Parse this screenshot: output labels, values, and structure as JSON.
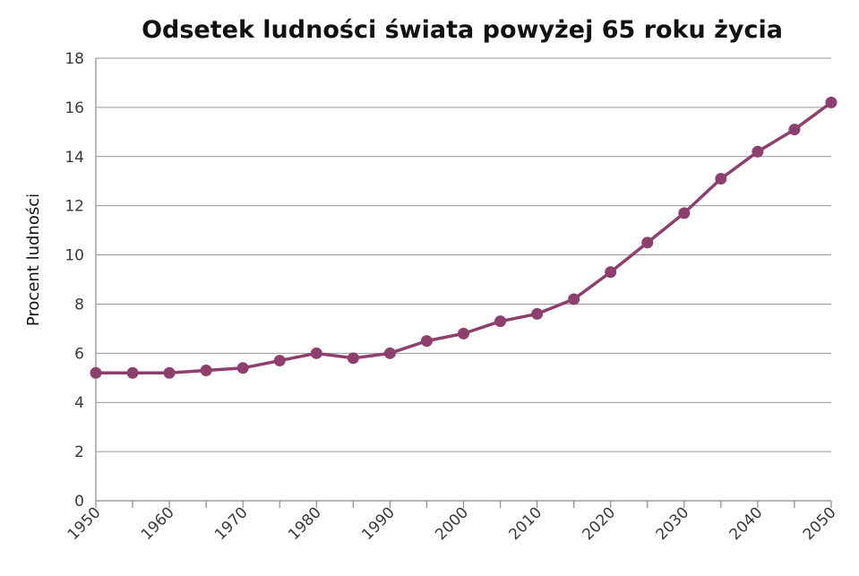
{
  "chart_data": {
    "type": "line",
    "title": "Odsetek ludności świata powyżej 65 roku życia",
    "xlabel": "",
    "ylabel": "Procent ludności",
    "x": [
      1950,
      1955,
      1960,
      1965,
      1970,
      1975,
      1980,
      1985,
      1990,
      1995,
      2000,
      2005,
      2010,
      2015,
      2020,
      2025,
      2030,
      2035,
      2040,
      2045,
      2050
    ],
    "x_tick_labels": [
      "1950",
      "1960",
      "1970",
      "1980",
      "1990",
      "2000",
      "2010",
      "2020",
      "2030",
      "2040",
      "2050"
    ],
    "x_tick_values": [
      1950,
      1960,
      1970,
      1980,
      1990,
      2000,
      2010,
      2020,
      2030,
      2040,
      2050
    ],
    "xlim": [
      1950,
      2050
    ],
    "ylim": [
      0,
      18
    ],
    "y_ticks": [
      0,
      2,
      4,
      6,
      8,
      10,
      12,
      14,
      16,
      18
    ],
    "grid": true,
    "legend": "none",
    "series": [
      {
        "color": "#8e3f6e",
        "values": [
          5.2,
          5.2,
          5.2,
          5.3,
          5.4,
          5.7,
          6.0,
          5.8,
          6.0,
          6.5,
          6.8,
          7.3,
          7.6,
          8.2,
          9.3,
          10.5,
          11.7,
          13.1,
          14.2,
          15.1,
          16.2
        ]
      }
    ]
  }
}
